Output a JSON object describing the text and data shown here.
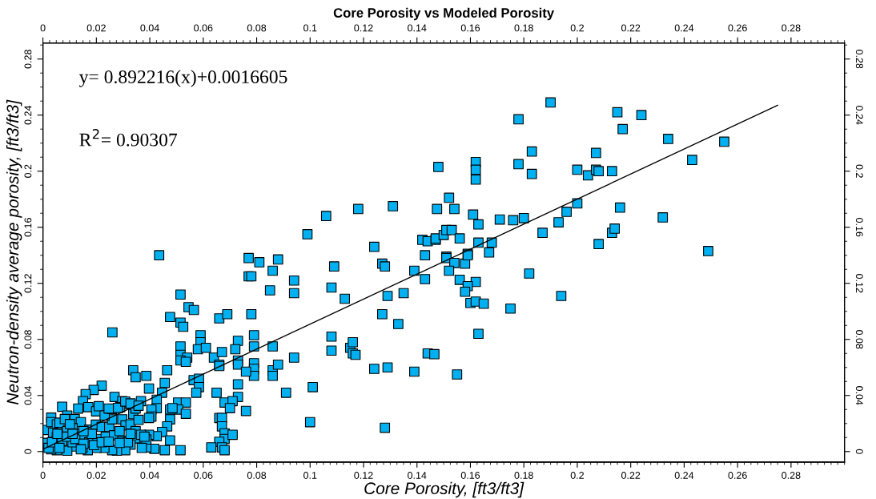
{
  "chart_data": {
    "type": "scatter",
    "title": "Core Porosity vs Modeled Porosity",
    "xlabel": "Core Porosity, [ft3/ft3]",
    "ylabel": "Neutron-density average porosity, [ft3/ft3]",
    "annotations": [
      "y= 0.892216(x)+0.0016605",
      "R$^{2}$= 0.90307"
    ],
    "marker": "square",
    "grid": false,
    "legend": false,
    "xlim": [
      0,
      0.3
    ],
    "xticks": [
      0,
      0.02,
      0.04,
      0.06,
      0.08,
      0.1,
      0.12,
      0.14,
      0.16,
      0.18,
      0.2,
      0.22,
      0.24,
      0.26,
      0.28
    ],
    "x2lim": [
      0,
      0.3
    ],
    "x2ticks": [
      0,
      0.02,
      0.04,
      0.06,
      0.08,
      0.1,
      0.12,
      0.14,
      0.16,
      0.18,
      0.2,
      0.22,
      0.24,
      0.26,
      0.28
    ],
    "ylim": [
      -0.0075,
      0.2915
    ],
    "yticks": [
      0,
      0.04,
      0.08,
      0.12,
      0.16,
      0.2,
      0.24,
      0.28
    ],
    "y2lim": [
      -0.0075,
      0.2915
    ],
    "y2ticks": [
      0,
      0.04,
      0.08,
      0.12,
      0.16,
      0.2,
      0.24,
      0.28
    ],
    "series": [
      {
        "color": "#00b0f0",
        "x": [
          0.0435,
          0.077,
          0.081,
          0.088,
          0.077,
          0.078,
          0.086,
          0.094,
          0.094,
          0.085,
          0.109,
          0.127,
          0.128,
          0.124,
          0.108,
          0.113,
          0.129,
          0.135,
          0.139,
          0.143,
          0.143,
          0.127,
          0.133,
          0.0515,
          0.0545,
          0.0565,
          0.0476,
          0.0515,
          0.0525,
          0.066,
          0.069,
          0.078,
          0.026,
          0.059,
          0.059,
          0.058,
          0.061,
          0.0515,
          0.0515,
          0.054,
          0.0515,
          0.0535,
          0.064,
          0.067,
          0.073,
          0.072,
          0.079,
          0.079,
          0.086,
          0.073,
          0.073,
          0.066,
          0.066,
          0.079,
          0.079,
          0.079,
          0.076,
          0.086,
          0.086,
          0.088,
          0.094,
          0.108,
          0.108,
          0.115,
          0.116,
          0.116,
          0.117,
          0.124,
          0.129,
          0.139,
          0.144,
          0.101,
          0.091,
          0.1,
          0.128,
          0.0564,
          0.0584,
          0.0584,
          0.0574,
          0.065,
          0.073,
          0.073,
          0.068,
          0.071,
          0.07,
          0.076,
          0.066,
          0.067,
          0.067,
          0.068,
          0.068,
          0.071,
          0.066,
          0.063,
          0.067,
          0.068,
          0.0465,
          0.0456,
          0.0446,
          0.0397,
          0.0387,
          0.0338,
          0.0347,
          0.0426,
          0.0426,
          0.0406,
          0.0406,
          0.0397,
          0.0506,
          0.0535,
          0.0506,
          0.0535,
          0.0476,
          0.0485,
          0.0476,
          0.0465,
          0.0446,
          0.0426,
          0.0397,
          0.0476,
          0.0456,
          0.0515,
          0.0417,
          0.0387,
          0.022,
          0.019,
          0.016,
          0.015,
          0.0072,
          0.0268,
          0.0297,
          0.0327,
          0.0367,
          0.099,
          0.106,
          0.118,
          0.131,
          0.142,
          0.144,
          0.147,
          0.148,
          0.1475,
          0.19,
          0.178,
          0.215,
          0.224,
          0.217,
          0.234,
          0.255,
          0.243,
          0.207,
          0.183,
          0.178,
          0.183,
          0.162,
          0.162,
          0.162,
          0.2,
          0.204,
          0.207,
          0.208,
          0.213,
          0.152,
          0.154,
          0.161,
          0.163,
          0.171,
          0.176,
          0.18,
          0.187,
          0.193,
          0.196,
          0.2,
          0.216,
          0.232,
          0.213,
          0.214,
          0.208,
          0.249,
          0.147,
          0.15,
          0.151,
          0.153,
          0.156,
          0.163,
          0.168,
          0.167,
          0.159,
          0.151,
          0.151,
          0.154,
          0.158,
          0.159,
          0.152,
          0.156,
          0.162,
          0.159,
          0.158,
          0.16,
          0.162,
          0.165,
          0.175,
          0.182,
          0.194,
          0.163,
          0.1465,
          0.155,
          0.0031,
          0.001,
          0.001,
          0.0031,
          0.0052,
          0.0062,
          0.0091,
          0.0119,
          0.0142,
          0.0082,
          0.0038,
          0.0052,
          0.0091,
          0.0111,
          0.0131,
          0.0152,
          0.0173,
          0.0198,
          0.022,
          0.0248,
          0.0259,
          0.0289,
          0.0297,
          0.0309,
          0.0328,
          0.0338,
          0.0347,
          0.0358,
          0.0347,
          0.0347,
          0.0328,
          0.0308,
          0.0277,
          0.0259,
          0.023,
          0.02,
          0.0168,
          0.0148,
          0.0121,
          0.0091,
          0.0052,
          0.0031,
          0.0021,
          0.0072,
          0.0111,
          0.0173,
          0.0204,
          0.0235,
          0.0266,
          0.0287,
          0.0297,
          0.0318,
          0.0367,
          0.0387,
          0.017,
          0.0199,
          0.0209,
          0.0231,
          0.0258,
          0.0281,
          0.0308,
          0.0328,
          0.0358,
          0.009,
          0.0121,
          0.0152,
          0.0183,
          0.0034,
          0.0054,
          0.0101,
          0.0062,
          0.0142,
          0.0191,
          0.022,
          0.0246,
          0.0287,
          0.0328,
          0.037,
          0.038,
          0.0246,
          0.0132,
          0.0111,
          0.0152
        ],
        "values": [
          0.14,
          0.138,
          0.135,
          0.137,
          0.125,
          0.125,
          0.129,
          0.122,
          0.113,
          0.115,
          0.132,
          0.134,
          0.132,
          0.146,
          0.117,
          0.109,
          0.111,
          0.113,
          0.129,
          0.123,
          0.14,
          0.098,
          0.091,
          0.112,
          0.103,
          0.101,
          0.096,
          0.092,
          0.089,
          0.095,
          0.098,
          0.098,
          0.085,
          0.083,
          0.078,
          0.073,
          0.074,
          0.075,
          0.069,
          0.067,
          0.065,
          0.064,
          0.067,
          0.071,
          0.079,
          0.073,
          0.083,
          0.075,
          0.075,
          0.065,
          0.062,
          0.062,
          0.061,
          0.063,
          0.059,
          0.054,
          0.057,
          0.058,
          0.054,
          0.062,
          0.067,
          0.082,
          0.072,
          0.074,
          0.078,
          0.07,
          0.069,
          0.059,
          0.06,
          0.057,
          0.07,
          0.046,
          0.042,
          0.021,
          0.017,
          0.051,
          0.052,
          0.046,
          0.042,
          0.042,
          0.048,
          0.039,
          0.035,
          0.036,
          0.031,
          0.029,
          0.024,
          0.024,
          0.018,
          0.013,
          0.009,
          0.012,
          0.007,
          0.003,
          0.003,
          0.001,
          0.058,
          0.049,
          0.042,
          0.045,
          0.054,
          0.058,
          0.053,
          0.037,
          0.031,
          0.03,
          0.025,
          0.024,
          0.035,
          0.035,
          0.03,
          0.027,
          0.03,
          0.031,
          0.023,
          0.018,
          0.014,
          0.011,
          0.012,
          0.008,
          0.001,
          0.001,
          0.002,
          0.003,
          0.047,
          0.044,
          0.041,
          0.036,
          0.032,
          0.039,
          0.036,
          0.034,
          0.036,
          0.155,
          0.168,
          0.173,
          0.175,
          0.151,
          0.15,
          0.151,
          0.203,
          0.173,
          0.249,
          0.237,
          0.242,
          0.24,
          0.23,
          0.223,
          0.221,
          0.208,
          0.213,
          0.214,
          0.205,
          0.198,
          0.2065,
          0.201,
          0.194,
          0.201,
          0.197,
          0.201,
          0.2,
          0.2,
          0.181,
          0.173,
          0.169,
          0.162,
          0.1655,
          0.165,
          0.1665,
          0.156,
          0.1635,
          0.171,
          0.177,
          0.174,
          0.167,
          0.156,
          0.159,
          0.148,
          0.143,
          0.152,
          0.1545,
          0.158,
          0.158,
          0.152,
          0.149,
          0.149,
          0.142,
          0.141,
          0.139,
          0.138,
          0.1345,
          0.134,
          0.14,
          0.129,
          0.1225,
          0.121,
          0.118,
          0.114,
          0.106,
          0.107,
          0.1055,
          0.102,
          0.127,
          0.111,
          0.084,
          0.0695,
          0.055,
          0.0242,
          0.0154,
          0.0062,
          0.021,
          0.0194,
          0.0206,
          0.0257,
          0.0232,
          0.021,
          0.0232,
          0.0134,
          0.0102,
          0.0146,
          0.0166,
          0.0126,
          0.0106,
          0.0156,
          0.0192,
          0.0176,
          0.0176,
          0.023,
          0.0317,
          0.023,
          0.0186,
          0.0194,
          0.0267,
          0.0307,
          0.0226,
          0.0146,
          0.0094,
          0.005,
          0.001,
          0.0006,
          0.001,
          0.0026,
          0.0026,
          0.001,
          0.0026,
          0.0036,
          0.0006,
          0.001,
          0.0016,
          0.0026,
          0.0076,
          0.0066,
          0.0066,
          0.009,
          0.0106,
          0.0116,
          0.0146,
          0.0076,
          0.0066,
          0.012,
          0.0086,
          0.0317,
          0.0287,
          0.0323,
          0.0257,
          0.0303,
          0.0311,
          0.0357,
          0.0343,
          0.0327,
          0.0106,
          0.009,
          0.0056,
          0.0126,
          0.0066,
          0.0126,
          0.0196,
          0.0026,
          0.0016,
          0.0046,
          0.0066,
          0.007,
          0.0062,
          0.0126,
          0.0026,
          0.0106,
          0.0307,
          0.0307,
          0.0126,
          0.0146
        ]
      },
      {
        "type": "line",
        "marker": "none",
        "color": "#000000",
        "x": [
          0,
          0.275
        ],
        "values": [
          0.0017,
          0.247
        ]
      }
    ]
  }
}
